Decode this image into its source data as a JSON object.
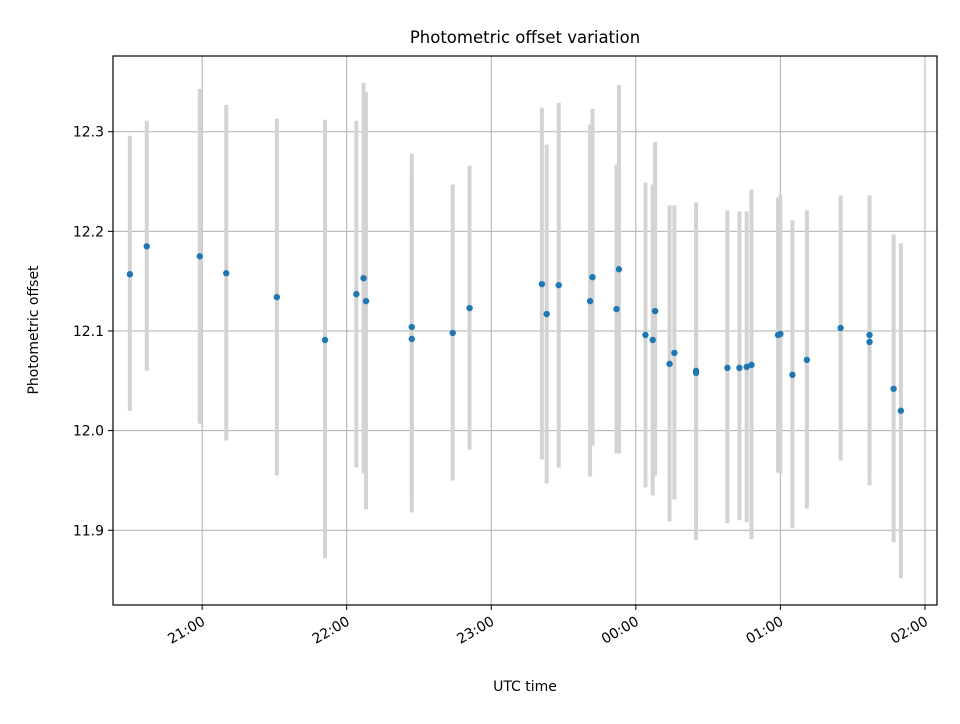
{
  "chart_data": {
    "type": "scatter",
    "title": "Photometric offset variation",
    "xlabel": "UTC time",
    "ylabel": "Photometric offset",
    "x_unit": "UTC time (HH:MM)",
    "xlim": [
      "20:23",
      "02:05"
    ],
    "ylim": [
      11.825,
      12.376
    ],
    "grid": true,
    "xticks": [
      "21:00",
      "22:00",
      "23:00",
      "00:00",
      "01:00",
      "02:00"
    ],
    "yticks": [
      11.9,
      12.0,
      12.1,
      12.2,
      12.3
    ],
    "marker_color": "#1f77b4",
    "errorbar_color": "#d3d3d3",
    "points": [
      {
        "x": "20:30",
        "y": 12.157,
        "ylow": 12.02,
        "yhigh": 12.296
      },
      {
        "x": "20:37",
        "y": 12.185,
        "ylow": 12.06,
        "yhigh": 12.311
      },
      {
        "x": "20:59",
        "y": 12.175,
        "ylow": 12.007,
        "yhigh": 12.343
      },
      {
        "x": "21:10",
        "y": 12.158,
        "ylow": 11.99,
        "yhigh": 12.327
      },
      {
        "x": "21:31",
        "y": 12.134,
        "ylow": 11.955,
        "yhigh": 12.313
      },
      {
        "x": "21:51",
        "y": 12.091,
        "ylow": 11.872,
        "yhigh": 12.312
      },
      {
        "x": "22:04",
        "y": 12.137,
        "ylow": 11.963,
        "yhigh": 12.311
      },
      {
        "x": "22:07",
        "y": 12.153,
        "ylow": 11.957,
        "yhigh": 12.349
      },
      {
        "x": "22:08",
        "y": 12.13,
        "ylow": 11.921,
        "yhigh": 12.34
      },
      {
        "x": "22:27",
        "y": 12.092,
        "ylow": 11.931,
        "yhigh": 12.254
      },
      {
        "x": "22:27",
        "y": 12.104,
        "ylow": 11.918,
        "yhigh": 12.278
      },
      {
        "x": "22:44",
        "y": 12.098,
        "ylow": 11.95,
        "yhigh": 12.247
      },
      {
        "x": "22:51",
        "y": 12.123,
        "ylow": 11.981,
        "yhigh": 12.266
      },
      {
        "x": "23:21",
        "y": 12.147,
        "ylow": 11.971,
        "yhigh": 12.324
      },
      {
        "x": "23:23",
        "y": 12.117,
        "ylow": 11.947,
        "yhigh": 12.287
      },
      {
        "x": "23:28",
        "y": 12.146,
        "ylow": 11.963,
        "yhigh": 12.329
      },
      {
        "x": "23:41",
        "y": 12.13,
        "ylow": 11.954,
        "yhigh": 12.307
      },
      {
        "x": "23:42",
        "y": 12.154,
        "ylow": 11.985,
        "yhigh": 12.323
      },
      {
        "x": "23:52",
        "y": 12.122,
        "ylow": 11.977,
        "yhigh": 12.267
      },
      {
        "x": "23:53",
        "y": 12.162,
        "ylow": 11.977,
        "yhigh": 12.347
      },
      {
        "x": "00:04",
        "y": 12.096,
        "ylow": 11.943,
        "yhigh": 12.249
      },
      {
        "x": "00:07",
        "y": 12.091,
        "ylow": 11.935,
        "yhigh": 12.247
      },
      {
        "x": "00:08",
        "y": 12.12,
        "ylow": 11.955,
        "yhigh": 12.29
      },
      {
        "x": "00:14",
        "y": 12.067,
        "ylow": 11.909,
        "yhigh": 12.226
      },
      {
        "x": "00:16",
        "y": 12.078,
        "ylow": 11.931,
        "yhigh": 12.226
      },
      {
        "x": "00:25",
        "y": 12.058,
        "ylow": 11.89,
        "yhigh": 12.229
      },
      {
        "x": "00:25",
        "y": 12.06,
        "ylow": 11.92,
        "yhigh": 12.2
      },
      {
        "x": "00:38",
        "y": 12.063,
        "ylow": 11.907,
        "yhigh": 12.221
      },
      {
        "x": "00:43",
        "y": 12.063,
        "ylow": 11.91,
        "yhigh": 12.22
      },
      {
        "x": "00:46",
        "y": 12.064,
        "ylow": 11.908,
        "yhigh": 12.22
      },
      {
        "x": "00:48",
        "y": 12.066,
        "ylow": 11.891,
        "yhigh": 12.242
      },
      {
        "x": "00:59",
        "y": 12.096,
        "ylow": 11.958,
        "yhigh": 12.234
      },
      {
        "x": "01:00",
        "y": 12.097,
        "ylow": 11.957,
        "yhigh": 12.237
      },
      {
        "x": "01:05",
        "y": 12.056,
        "ylow": 11.902,
        "yhigh": 12.211
      },
      {
        "x": "01:11",
        "y": 12.071,
        "ylow": 11.922,
        "yhigh": 12.221
      },
      {
        "x": "01:25",
        "y": 12.103,
        "ylow": 11.97,
        "yhigh": 12.236
      },
      {
        "x": "01:37",
        "y": 12.096,
        "ylow": 11.955,
        "yhigh": 12.236
      },
      {
        "x": "01:37",
        "y": 12.089,
        "ylow": 11.945,
        "yhigh": 12.234
      },
      {
        "x": "01:47",
        "y": 12.042,
        "ylow": 11.888,
        "yhigh": 12.197
      },
      {
        "x": "01:50",
        "y": 12.02,
        "ylow": 11.852,
        "yhigh": 12.188
      }
    ]
  }
}
